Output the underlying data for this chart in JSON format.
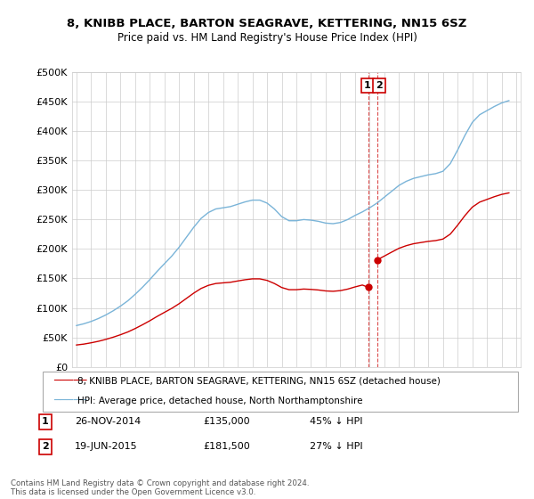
{
  "title": "8, KNIBB PLACE, BARTON SEAGRAVE, KETTERING, NN15 6SZ",
  "subtitle": "Price paid vs. HM Land Registry's House Price Index (HPI)",
  "ylim": [
    0,
    500000
  ],
  "yticks": [
    0,
    50000,
    100000,
    150000,
    200000,
    250000,
    300000,
    350000,
    400000,
    450000,
    500000
  ],
  "ytick_labels": [
    "£0",
    "£50K",
    "£100K",
    "£150K",
    "£200K",
    "£250K",
    "£300K",
    "£350K",
    "£400K",
    "£450K",
    "£500K"
  ],
  "hpi_color": "#7ab4d8",
  "price_color": "#cc0000",
  "sale1_date": "26-NOV-2014",
  "sale1_price": 135000,
  "sale1_price_str": "£135,000",
  "sale1_pct": "45% ↓ HPI",
  "sale1_x": 2014.9,
  "sale2_date": "19-JUN-2015",
  "sale2_price": 181500,
  "sale2_price_str": "£181,500",
  "sale2_pct": "27% ↓ HPI",
  "sale2_x": 2015.5,
  "legend_property": "8, KNIBB PLACE, BARTON SEAGRAVE, KETTERING, NN15 6SZ (detached house)",
  "legend_hpi": "HPI: Average price, detached house, North Northamptonshire",
  "footer": "Contains HM Land Registry data © Crown copyright and database right 2024.\nThis data is licensed under the Open Government Licence v3.0.",
  "background_color": "#ffffff",
  "grid_color": "#cccccc",
  "hpi_years": [
    1995.0,
    1995.5,
    1996.0,
    1996.5,
    1997.0,
    1997.5,
    1998.0,
    1998.5,
    1999.0,
    1999.5,
    2000.0,
    2000.5,
    2001.0,
    2001.5,
    2002.0,
    2002.5,
    2003.0,
    2003.5,
    2004.0,
    2004.5,
    2005.0,
    2005.5,
    2006.0,
    2006.5,
    2007.0,
    2007.5,
    2008.0,
    2008.5,
    2009.0,
    2009.5,
    2010.0,
    2010.5,
    2011.0,
    2011.5,
    2012.0,
    2012.5,
    2013.0,
    2013.5,
    2014.0,
    2014.5,
    2015.0,
    2015.5,
    2016.0,
    2016.5,
    2017.0,
    2017.5,
    2018.0,
    2018.5,
    2019.0,
    2019.5,
    2020.0,
    2020.5,
    2021.0,
    2021.5,
    2022.0,
    2022.5,
    2023.0,
    2023.5,
    2024.0,
    2024.5
  ],
  "hpi_values": [
    70000,
    73000,
    77000,
    82000,
    88000,
    95000,
    103000,
    112000,
    123000,
    135000,
    148000,
    162000,
    175000,
    188000,
    203000,
    220000,
    237000,
    252000,
    262000,
    268000,
    270000,
    272000,
    276000,
    280000,
    283000,
    283000,
    278000,
    268000,
    255000,
    248000,
    248000,
    250000,
    249000,
    247000,
    244000,
    243000,
    245000,
    250000,
    257000,
    263000,
    270000,
    278000,
    288000,
    298000,
    308000,
    315000,
    320000,
    323000,
    326000,
    328000,
    332000,
    345000,
    368000,
    393000,
    415000,
    428000,
    435000,
    442000,
    448000,
    452000
  ],
  "red_years": [
    1995.0,
    1995.5,
    1996.0,
    1996.5,
    1997.0,
    1997.5,
    1998.0,
    1998.5,
    1999.0,
    1999.5,
    2000.0,
    2000.5,
    2001.0,
    2001.5,
    2002.0,
    2002.5,
    2003.0,
    2003.5,
    2004.0,
    2004.5,
    2005.0,
    2005.5,
    2006.0,
    2006.5,
    2007.0,
    2007.5,
    2008.0,
    2008.5,
    2009.0,
    2009.5,
    2010.0,
    2010.5,
    2011.0,
    2011.5,
    2012.0,
    2012.5,
    2013.0,
    2013.5,
    2014.0,
    2014.5,
    2014.9,
    2015.5,
    2016.0,
    2016.5,
    2017.0,
    2017.5,
    2018.0,
    2018.5,
    2019.0,
    2019.5,
    2020.0,
    2020.5,
    2021.0,
    2021.5,
    2022.0,
    2022.5,
    2023.0,
    2023.5,
    2024.0,
    2024.5
  ],
  "red_values": [
    37000,
    38500,
    40700,
    43300,
    46500,
    50200,
    54400,
    59100,
    64900,
    71300,
    78100,
    85500,
    92400,
    99200,
    107100,
    116100,
    125100,
    133000,
    138300,
    141400,
    142500,
    143500,
    145700,
    147800,
    149300,
    149300,
    146700,
    141400,
    134600,
    130900,
    130900,
    132000,
    131400,
    130400,
    128800,
    128200,
    129300,
    131900,
    135600,
    138800,
    135000,
    181500,
    188000,
    194700,
    201200,
    205700,
    209000,
    211000,
    213000,
    214300,
    216900,
    225300,
    240400,
    256800,
    271100,
    279600,
    284200,
    288800,
    292700,
    295300
  ]
}
